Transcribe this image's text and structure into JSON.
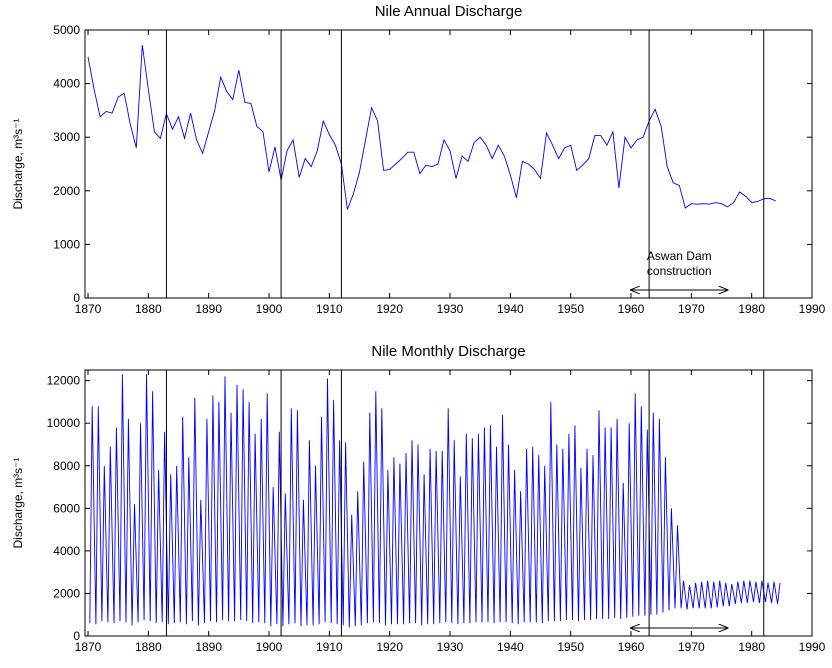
{
  "chart_data": [
    {
      "type": "line",
      "title": "Nile Annual Discharge",
      "ylabel": "Discharge, m³s⁻¹",
      "xlim": [
        1869.5,
        1990
      ],
      "ylim": [
        0,
        5000
      ],
      "xticks": [
        1870,
        1880,
        1890,
        1900,
        1910,
        1920,
        1930,
        1940,
        1950,
        1960,
        1970,
        1980,
        1990
      ],
      "yticks": [
        0,
        1000,
        2000,
        3000,
        4000,
        5000
      ],
      "vlines": [
        1883,
        1902,
        1912,
        1963,
        1982
      ],
      "arrow": [
        1960,
        1976
      ],
      "annotation": [
        "Aswan Dam",
        "construction"
      ],
      "series": [
        {
          "color": "#0000ff",
          "x": [
            1870,
            1871,
            1872,
            1873,
            1874,
            1875,
            1876,
            1877,
            1878,
            1879,
            1880,
            1881,
            1882,
            1883,
            1884,
            1885,
            1886,
            1887,
            1888,
            1889,
            1890,
            1891,
            1892,
            1893,
            1894,
            1895,
            1896,
            1897,
            1898,
            1899,
            1900,
            1901,
            1902,
            1903,
            1904,
            1905,
            1906,
            1907,
            1908,
            1909,
            1910,
            1911,
            1912,
            1913,
            1914,
            1915,
            1916,
            1917,
            1918,
            1919,
            1920,
            1921,
            1922,
            1923,
            1924,
            1925,
            1926,
            1927,
            1928,
            1929,
            1930,
            1931,
            1932,
            1933,
            1934,
            1935,
            1936,
            1937,
            1938,
            1939,
            1940,
            1941,
            1942,
            1943,
            1944,
            1945,
            1946,
            1947,
            1948,
            1949,
            1950,
            1951,
            1952,
            1953,
            1954,
            1955,
            1956,
            1957,
            1958,
            1959,
            1960,
            1961,
            1962,
            1963,
            1964,
            1965,
            1966,
            1967,
            1968,
            1969,
            1970,
            1971,
            1972,
            1973,
            1974,
            1975,
            1976,
            1977,
            1978,
            1979,
            1980,
            1981,
            1982,
            1983,
            1984
          ],
          "values": [
            4500,
            3900,
            3380,
            3480,
            3450,
            3750,
            3820,
            3250,
            2800,
            4720,
            3900,
            3100,
            2980,
            3440,
            3150,
            3380,
            2980,
            3450,
            2950,
            2700,
            3100,
            3500,
            4120,
            3850,
            3700,
            4250,
            3650,
            3630,
            3200,
            3100,
            2350,
            2820,
            2200,
            2750,
            2950,
            2250,
            2600,
            2450,
            2750,
            3300,
            3050,
            2850,
            2500,
            1650,
            1950,
            2350,
            2950,
            3550,
            3300,
            2380,
            2400,
            2500,
            2600,
            2720,
            2720,
            2320,
            2480,
            2450,
            2500,
            2950,
            2750,
            2230,
            2650,
            2550,
            2900,
            3000,
            2850,
            2600,
            2850,
            2650,
            2300,
            1870,
            2550,
            2500,
            2400,
            2230,
            3080,
            2850,
            2600,
            2800,
            2850,
            2380,
            2480,
            2600,
            3030,
            3030,
            2850,
            3100,
            2050,
            3000,
            2800,
            2950,
            3000,
            3300,
            3520,
            3200,
            2450,
            2150,
            2100,
            1680,
            1760,
            1750,
            1760,
            1750,
            1780,
            1760,
            1700,
            1780,
            1980,
            1900,
            1780,
            1800,
            1850,
            1860,
            1810
          ]
        }
      ]
    },
    {
      "type": "line",
      "title": "Nile Monthly Discharge",
      "ylabel": "Discharge, m³s⁻¹",
      "xlim": [
        1869.5,
        1990
      ],
      "ylim": [
        0,
        12500
      ],
      "xticks": [
        1870,
        1880,
        1890,
        1900,
        1910,
        1920,
        1930,
        1940,
        1950,
        1960,
        1970,
        1980,
        1990
      ],
      "yticks": [
        0,
        2000,
        4000,
        6000,
        8000,
        10000,
        12000
      ],
      "vlines": [
        1883,
        1902,
        1912,
        1963,
        1982
      ],
      "arrow": [
        1960,
        1976
      ],
      "series": [
        {
          "color": "#0000ff",
          "x": [
            1870.3,
            1870.7,
            1871.3,
            1871.7,
            1872.3,
            1872.7,
            1873.3,
            1873.7,
            1874.3,
            1874.7,
            1875.3,
            1875.7,
            1876.3,
            1876.7,
            1877.3,
            1877.7,
            1878.3,
            1878.7,
            1879.3,
            1879.7,
            1880.3,
            1880.7,
            1881.3,
            1881.7,
            1882.3,
            1882.7,
            1883.3,
            1883.7,
            1884.3,
            1884.7,
            1885.3,
            1885.7,
            1886.3,
            1886.7,
            1887.3,
            1887.7,
            1888.3,
            1888.7,
            1889.3,
            1889.7,
            1890.3,
            1890.7,
            1891.3,
            1891.7,
            1892.3,
            1892.7,
            1893.3,
            1893.7,
            1894.3,
            1894.7,
            1895.3,
            1895.7,
            1896.3,
            1896.7,
            1897.3,
            1897.7,
            1898.3,
            1898.7,
            1899.3,
            1899.7,
            1900.3,
            1900.7,
            1901.3,
            1901.7,
            1902.3,
            1902.7,
            1903.3,
            1903.7,
            1904.3,
            1904.7,
            1905.3,
            1905.7,
            1906.3,
            1906.7,
            1907.3,
            1907.7,
            1908.3,
            1908.7,
            1909.3,
            1909.7,
            1910.3,
            1910.7,
            1911.3,
            1911.7,
            1912.3,
            1912.7,
            1913.3,
            1913.7,
            1914.3,
            1914.7,
            1915.3,
            1915.7,
            1916.3,
            1916.7,
            1917.3,
            1917.7,
            1918.3,
            1918.7,
            1919.3,
            1919.7,
            1920.3,
            1920.7,
            1921.3,
            1921.7,
            1922.3,
            1922.7,
            1923.3,
            1923.7,
            1924.3,
            1924.7,
            1925.3,
            1925.7,
            1926.3,
            1926.7,
            1927.3,
            1927.7,
            1928.3,
            1928.7,
            1929.3,
            1929.7,
            1930.3,
            1930.7,
            1931.3,
            1931.7,
            1932.3,
            1932.7,
            1933.3,
            1933.7,
            1934.3,
            1934.7,
            1935.3,
            1935.7,
            1936.3,
            1936.7,
            1937.3,
            1937.7,
            1938.3,
            1938.7,
            1939.3,
            1939.7,
            1940.3,
            1940.7,
            1941.3,
            1941.7,
            1942.3,
            1942.7,
            1943.3,
            1943.7,
            1944.3,
            1944.7,
            1945.3,
            1945.7,
            1946.3,
            1946.7,
            1947.3,
            1947.7,
            1948.3,
            1948.7,
            1949.3,
            1949.7,
            1950.3,
            1950.7,
            1951.3,
            1951.7,
            1952.3,
            1952.7,
            1953.3,
            1953.7,
            1954.3,
            1954.7,
            1955.3,
            1955.7,
            1956.3,
            1956.7,
            1957.3,
            1957.7,
            1958.3,
            1958.7,
            1959.3,
            1959.7,
            1960.3,
            1960.7,
            1961.3,
            1961.7,
            1962.3,
            1962.7,
            1963.3,
            1963.7,
            1964.3,
            1964.7,
            1965.3,
            1965.7,
            1966.3,
            1966.7,
            1967.3,
            1967.7,
            1968.3,
            1968.7,
            1969.3,
            1969.7,
            1970.3,
            1970.7,
            1971.3,
            1971.7,
            1972.3,
            1972.7,
            1973.3,
            1973.7,
            1974.3,
            1974.7,
            1975.3,
            1975.7,
            1976.3,
            1976.7,
            1977.3,
            1977.7,
            1978.3,
            1978.7,
            1979.3,
            1979.7,
            1980.3,
            1980.7,
            1981.3,
            1981.7,
            1982.3,
            1982.7,
            1983.3,
            1983.7,
            1984.3,
            1984.7
          ],
          "values": [
            600,
            10800,
            550,
            10800,
            700,
            8000,
            650,
            8900,
            600,
            9800,
            700,
            12300,
            650,
            10200,
            500,
            6200,
            650,
            10000,
            750,
            12300,
            700,
            11500,
            600,
            7800,
            650,
            9600,
            550,
            7600,
            600,
            8000,
            650,
            10300,
            550,
            8400,
            700,
            11200,
            500,
            6400,
            600,
            10200,
            700,
            11300,
            650,
            11000,
            750,
            12200,
            700,
            10500,
            700,
            11800,
            750,
            11600,
            700,
            11000,
            600,
            9500,
            650,
            10200,
            600,
            11400,
            450,
            7000,
            550,
            9600,
            450,
            6700,
            550,
            10700,
            600,
            10600,
            450,
            6400,
            500,
            9200,
            500,
            8000,
            550,
            10300,
            650,
            12100,
            600,
            11100,
            550,
            9200,
            500,
            9100,
            400,
            5700,
            450,
            6800,
            500,
            8200,
            600,
            10500,
            650,
            11500,
            600,
            10700,
            500,
            7800,
            550,
            8400,
            550,
            8100,
            550,
            8600,
            600,
            9200,
            600,
            9000,
            500,
            7600,
            550,
            8800,
            550,
            8700,
            600,
            8700,
            650,
            10700,
            600,
            9200,
            550,
            7500,
            600,
            9500,
            600,
            9300,
            650,
            9500,
            650,
            9800,
            650,
            9900,
            600,
            8900,
            650,
            10400,
            650,
            9000,
            600,
            7800,
            550,
            6800,
            650,
            8800,
            650,
            8900,
            650,
            8500,
            600,
            8000,
            700,
            11000,
            700,
            9000,
            700,
            8800,
            750,
            9500,
            750,
            9900,
            700,
            7900,
            750,
            8800,
            750,
            8500,
            800,
            10600,
            800,
            9800,
            800,
            9800,
            850,
            10200,
            800,
            7200,
            850,
            10000,
            900,
            11400,
            950,
            10800,
            950,
            9700,
            1000,
            10500,
            1000,
            10200,
            1100,
            8400,
            1200,
            6000,
            1300,
            5200,
            1300,
            2600,
            1250,
            2400,
            1300,
            2500,
            1300,
            2550,
            1300,
            2600,
            1300,
            2550,
            1350,
            2600,
            1400,
            2500,
            1400,
            2450,
            1500,
            2550,
            1550,
            2600,
            1550,
            2600,
            1600,
            2550,
            1550,
            2600,
            1600,
            2500,
            1550,
            2550,
            1500,
            2500
          ]
        }
      ]
    }
  ]
}
